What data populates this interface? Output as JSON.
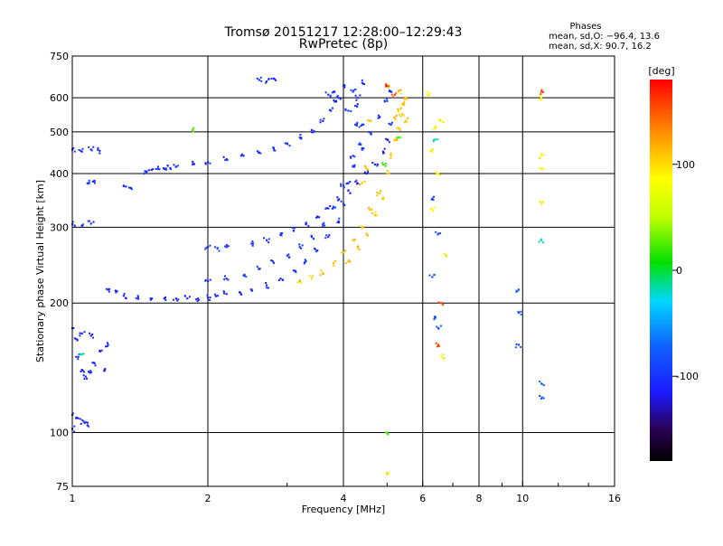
{
  "chart_data": {
    "type": "scatter",
    "title": "Tromsø 20151217 12:28:00–12:29:43",
    "subtitle": "RwPretec (8p)",
    "xlabel": "Frequency [MHz]",
    "ylabel": "Stationary phase Virtual Height [km]",
    "x_scale": "log",
    "y_scale": "log",
    "xlim": [
      1,
      16
    ],
    "ylim": [
      75,
      750
    ],
    "x_ticks": [
      1,
      2,
      4,
      6,
      8,
      10,
      16
    ],
    "x_tick_labels": [
      "1",
      "2",
      "4",
      "6",
      "8",
      "10",
      "16"
    ],
    "x_minor_ticks": [
      3,
      5,
      7,
      9,
      12,
      14
    ],
    "y_ticks": [
      75,
      100,
      200,
      300,
      400,
      500,
      600,
      750
    ],
    "y_tick_labels": [
      "75",
      "100",
      "200",
      "300",
      "400",
      "500",
      "600",
      "750"
    ],
    "grid": true,
    "phases_header": "Phases",
    "phases_o": "mean, sd,O: −96.4, 13.6",
    "phases_x": "mean, sd,X:  90.7, 16.2",
    "colorbar": {
      "label": "[deg]",
      "range": [
        -180,
        180
      ],
      "ticks": [
        100,
        0,
        -100
      ],
      "tick_labels": [
        "100",
        "0",
        "-100"
      ]
    },
    "series": [
      {
        "phase": -110,
        "points": [
          [
            1.0,
            175
          ],
          [
            1.02,
            165
          ],
          [
            1.03,
            150
          ],
          [
            1.05,
            140
          ],
          [
            1.07,
            135
          ],
          [
            1.1,
            138
          ],
          [
            1.12,
            145
          ],
          [
            1.15,
            155
          ],
          [
            1.18,
            140
          ],
          [
            1.2,
            160
          ],
          [
            1.05,
            170
          ],
          [
            1.1,
            168
          ],
          [
            1.0,
            110
          ],
          [
            1.03,
            108
          ],
          [
            1.06,
            106
          ],
          [
            1.08,
            104
          ],
          [
            1.0,
            102
          ]
        ]
      },
      {
        "phase": -105,
        "points": [
          [
            1.2,
            215
          ],
          [
            1.25,
            212
          ],
          [
            1.3,
            208
          ],
          [
            1.4,
            206
          ],
          [
            1.5,
            205
          ],
          [
            1.6,
            205
          ],
          [
            1.7,
            205
          ],
          [
            1.8,
            205
          ],
          [
            1.9,
            205
          ],
          [
            2.0,
            206
          ],
          [
            2.1,
            208
          ],
          [
            2.2,
            210
          ],
          [
            2.35,
            212
          ],
          [
            2.5,
            215
          ],
          [
            2.7,
            220
          ],
          [
            2.9,
            228
          ],
          [
            3.1,
            238
          ],
          [
            3.3,
            250
          ],
          [
            3.5,
            265
          ],
          [
            3.7,
            285
          ],
          [
            3.9,
            310
          ],
          [
            4.0,
            340
          ],
          [
            4.1,
            380
          ],
          [
            4.2,
            440
          ],
          [
            4.25,
            520
          ],
          [
            4.3,
            600
          ]
        ]
      },
      {
        "phase": -100,
        "points": [
          [
            2.0,
            225
          ],
          [
            2.2,
            228
          ],
          [
            2.4,
            232
          ],
          [
            2.6,
            240
          ],
          [
            2.8,
            248
          ],
          [
            3.0,
            258
          ],
          [
            3.2,
            270
          ],
          [
            3.4,
            285
          ],
          [
            3.6,
            305
          ],
          [
            3.8,
            335
          ],
          [
            4.0,
            375
          ],
          [
            4.2,
            415
          ],
          [
            4.4,
            455
          ],
          [
            4.6,
            495
          ],
          [
            4.8,
            540
          ],
          [
            5.0,
            590
          ],
          [
            5.1,
            620
          ]
        ]
      },
      {
        "phase": -110,
        "points": [
          [
            2.5,
            275
          ],
          [
            2.7,
            280
          ],
          [
            2.9,
            288
          ],
          [
            3.1,
            295
          ],
          [
            3.3,
            305
          ],
          [
            3.5,
            318
          ],
          [
            3.7,
            332
          ],
          [
            3.9,
            348
          ],
          [
            4.1,
            365
          ],
          [
            4.3,
            380
          ],
          [
            4.5,
            400
          ],
          [
            4.7,
            420
          ],
          [
            4.9,
            450
          ],
          [
            5.0,
            480
          ],
          [
            5.1,
            520
          ]
        ]
      },
      {
        "phase": -105,
        "points": [
          [
            1.7,
            415
          ],
          [
            1.85,
            420
          ],
          [
            2.0,
            425
          ],
          [
            2.2,
            432
          ],
          [
            2.4,
            440
          ],
          [
            2.6,
            448
          ],
          [
            2.8,
            458
          ],
          [
            3.0,
            470
          ],
          [
            3.2,
            485
          ],
          [
            3.4,
            505
          ],
          [
            3.6,
            530
          ],
          [
            3.75,
            560
          ],
          [
            3.85,
            590
          ]
        ]
      },
      {
        "phase": -100,
        "points": [
          [
            1.0,
            455
          ],
          [
            1.05,
            450
          ],
          [
            1.1,
            455
          ],
          [
            1.15,
            452
          ],
          [
            1.3,
            375
          ],
          [
            1.35,
            370
          ],
          [
            1.45,
            405
          ],
          [
            1.5,
            408
          ],
          [
            1.55,
            410
          ],
          [
            1.6,
            410
          ],
          [
            1.65,
            412
          ],
          [
            1.0,
            305
          ],
          [
            1.05,
            303
          ],
          [
            1.1,
            306
          ],
          [
            1.08,
            380
          ],
          [
            1.12,
            385
          ],
          [
            2.0,
            270
          ],
          [
            2.1,
            268
          ],
          [
            2.2,
            270
          ],
          [
            2.6,
            660
          ],
          [
            2.7,
            655
          ],
          [
            2.8,
            665
          ],
          [
            3.7,
            610
          ],
          [
            3.8,
            620
          ],
          [
            3.9,
            600
          ],
          [
            4.0,
            640
          ],
          [
            4.1,
            560
          ],
          [
            4.2,
            620
          ],
          [
            4.3,
            580
          ],
          [
            4.4,
            650
          ],
          [
            4.4,
            520
          ],
          [
            4.35,
            470
          ]
        ]
      },
      {
        "phase": 110,
        "points": [
          [
            3.2,
            225
          ],
          [
            3.4,
            228
          ],
          [
            3.6,
            235
          ],
          [
            3.8,
            248
          ],
          [
            4.0,
            262
          ],
          [
            4.2,
            280
          ],
          [
            4.4,
            300
          ],
          [
            4.6,
            330
          ],
          [
            4.8,
            360
          ],
          [
            5.0,
            400
          ],
          [
            5.1,
            440
          ],
          [
            5.2,
            480
          ],
          [
            5.3,
            510
          ],
          [
            4.1,
            250
          ],
          [
            4.3,
            270
          ],
          [
            4.5,
            290
          ],
          [
            4.7,
            320
          ],
          [
            4.9,
            350
          ],
          [
            5.2,
            540
          ],
          [
            5.3,
            560
          ],
          [
            5.4,
            580
          ],
          [
            5.5,
            600
          ],
          [
            5.3,
            620
          ],
          [
            5.0,
            640
          ],
          [
            4.6,
            530
          ],
          [
            4.5,
            410
          ],
          [
            4.4,
            380
          ],
          [
            5.4,
            550
          ],
          [
            5.5,
            530
          ]
        ]
      },
      {
        "phase": -80,
        "points": [
          [
            6.3,
            230
          ],
          [
            6.4,
            185
          ],
          [
            6.5,
            175
          ],
          [
            9.8,
            215
          ],
          [
            9.8,
            190
          ],
          [
            9.8,
            160
          ],
          [
            11.0,
            130
          ],
          [
            11.0,
            120
          ],
          [
            6.3,
            350
          ],
          [
            6.5,
            290
          ]
        ]
      },
      {
        "phase": 90,
        "points": [
          [
            6.2,
            610
          ],
          [
            6.4,
            510
          ],
          [
            6.6,
            530
          ],
          [
            6.3,
            450
          ],
          [
            6.5,
            400
          ],
          [
            6.7,
            260
          ],
          [
            6.3,
            330
          ],
          [
            11.0,
            600
          ],
          [
            11.0,
            440
          ],
          [
            11.0,
            410
          ],
          [
            11.0,
            340
          ],
          [
            5.0,
            80
          ],
          [
            6.6,
            150
          ]
        ]
      },
      {
        "phase": 160,
        "points": [
          [
            5.0,
            640
          ],
          [
            5.2,
            610
          ],
          [
            6.6,
            200
          ],
          [
            6.5,
            160
          ],
          [
            11.0,
            620
          ]
        ]
      },
      {
        "phase": 20,
        "points": [
          [
            5.3,
            485
          ],
          [
            4.9,
            420
          ],
          [
            5.0,
            100
          ],
          [
            1.85,
            505
          ]
        ]
      },
      {
        "phase": -20,
        "points": [
          [
            6.4,
            480
          ],
          [
            11.0,
            280
          ],
          [
            1.05,
            152
          ]
        ]
      }
    ]
  }
}
